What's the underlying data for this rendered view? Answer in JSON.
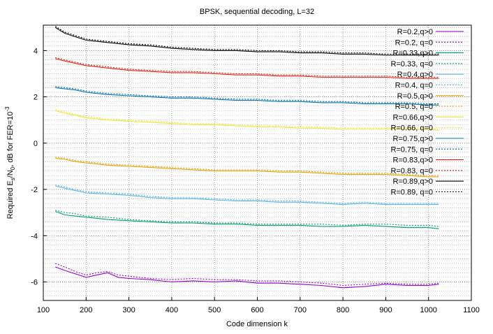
{
  "chart_data": {
    "type": "line",
    "title": "BPSK, sequential decoding, L=32",
    "xlabel": "Code dimension k",
    "ylabel_parts": {
      "a": "Required E",
      "b": "s",
      "c": "/N",
      "d": "0",
      "e": ", dB for FER=10",
      "f": "-3"
    },
    "xlim": [
      100,
      1100
    ],
    "ylim": [
      -6.8,
      5.1
    ],
    "xticks": [
      100,
      200,
      300,
      400,
      500,
      600,
      700,
      800,
      900,
      1000,
      1100
    ],
    "yticks": [
      -6,
      -4,
      -2,
      0,
      2,
      4
    ],
    "grid": true,
    "legend_position": "top-right",
    "series": [
      {
        "name": "R=0.2,q>0",
        "color": "#9400d3",
        "dash": "solid",
        "x": [
          128,
          150,
          175,
          200,
          225,
          250,
          275,
          300,
          350,
          400,
          450,
          500,
          550,
          600,
          650,
          700,
          750,
          800,
          850,
          900,
          950,
          1000,
          1024
        ],
        "y": [
          -5.35,
          -5.5,
          -5.65,
          -5.8,
          -5.7,
          -5.6,
          -5.8,
          -5.85,
          -5.9,
          -6.0,
          -5.95,
          -6.0,
          -5.95,
          -6.05,
          -6.05,
          -6.1,
          -6.15,
          -6.25,
          -6.2,
          -6.1,
          -6.15,
          -6.15,
          -6.1
        ]
      },
      {
        "name": "R=0.2, q=0",
        "color": "#9400d3",
        "dash": "dotted",
        "x": [
          128,
          150,
          175,
          200,
          225,
          250,
          275,
          300,
          350,
          400,
          450,
          500,
          550,
          600,
          650,
          700,
          750,
          800,
          850,
          900,
          950,
          1000,
          1024
        ],
        "y": [
          -5.2,
          -5.35,
          -5.55,
          -5.7,
          -5.6,
          -5.55,
          -5.7,
          -5.75,
          -5.85,
          -5.9,
          -5.85,
          -5.9,
          -5.9,
          -5.95,
          -5.95,
          -6.0,
          -6.05,
          -6.15,
          -6.1,
          -6.05,
          -6.1,
          -6.1,
          -6.05
        ]
      },
      {
        "name": "R=0.33,q>0",
        "color": "#009e73",
        "dash": "solid",
        "x": [
          128,
          150,
          175,
          200,
          250,
          300,
          350,
          400,
          450,
          500,
          550,
          600,
          650,
          700,
          750,
          800,
          850,
          900,
          950,
          1000,
          1024
        ],
        "y": [
          -2.95,
          -3.1,
          -3.15,
          -3.2,
          -3.3,
          -3.35,
          -3.4,
          -3.45,
          -3.45,
          -3.5,
          -3.5,
          -3.55,
          -3.55,
          -3.55,
          -3.6,
          -3.6,
          -3.55,
          -3.6,
          -3.65,
          -3.65,
          -3.7
        ]
      },
      {
        "name": "R=0.33, q=0",
        "color": "#009e73",
        "dash": "dotted",
        "x": [
          128,
          150,
          175,
          200,
          250,
          300,
          350,
          400,
          450,
          500,
          550,
          600,
          650,
          700,
          750,
          800,
          850,
          900,
          950,
          1000,
          1024
        ],
        "y": [
          -2.9,
          -3.0,
          -3.05,
          -3.15,
          -3.2,
          -3.3,
          -3.35,
          -3.4,
          -3.4,
          -3.45,
          -3.45,
          -3.5,
          -3.5,
          -3.5,
          -3.5,
          -3.55,
          -3.5,
          -3.5,
          -3.55,
          -3.55,
          -3.6
        ]
      },
      {
        "name": "R=0.4,q>0",
        "color": "#56b4e9",
        "dash": "solid",
        "x": [
          128,
          150,
          175,
          200,
          250,
          300,
          350,
          400,
          450,
          500,
          550,
          600,
          650,
          700,
          750,
          800,
          850,
          900,
          950,
          1000,
          1024
        ],
        "y": [
          -1.85,
          -1.95,
          -2.05,
          -2.15,
          -2.2,
          -2.25,
          -2.35,
          -2.4,
          -2.4,
          -2.45,
          -2.5,
          -2.5,
          -2.55,
          -2.55,
          -2.6,
          -2.65,
          -2.6,
          -2.65,
          -2.65,
          -2.65,
          -2.65
        ]
      },
      {
        "name": "R=0.4, q=0",
        "color": "#56b4e9",
        "dash": "dotted",
        "x": [
          128,
          150,
          175,
          200,
          250,
          300,
          350,
          400,
          450,
          500,
          550,
          600,
          650,
          700,
          750,
          800,
          850,
          900,
          950,
          1000,
          1024
        ],
        "y": [
          -1.8,
          -1.9,
          -2.0,
          -2.1,
          -2.15,
          -2.2,
          -2.3,
          -2.35,
          -2.35,
          -2.4,
          -2.45,
          -2.45,
          -2.5,
          -2.5,
          -2.55,
          -2.6,
          -2.55,
          -2.6,
          -2.6,
          -2.6,
          -2.6
        ]
      },
      {
        "name": "R=0.5,q>0",
        "color": "#e69f00",
        "dash": "solid",
        "x": [
          128,
          150,
          175,
          200,
          250,
          300,
          350,
          400,
          450,
          500,
          550,
          600,
          650,
          700,
          750,
          800,
          850,
          900,
          950,
          1000,
          1024
        ],
        "y": [
          -0.65,
          -0.7,
          -0.8,
          -0.85,
          -0.95,
          -1.0,
          -1.05,
          -1.1,
          -1.15,
          -1.2,
          -1.2,
          -1.2,
          -1.25,
          -1.25,
          -1.3,
          -1.35,
          -1.35,
          -1.35,
          -1.4,
          -1.45,
          -1.45
        ]
      },
      {
        "name": "R=0.5, q=0",
        "color": "#e69f00",
        "dash": "dotted",
        "x": [
          128,
          150,
          175,
          200,
          250,
          300,
          350,
          400,
          450,
          500,
          550,
          600,
          650,
          700,
          750,
          800,
          850,
          900,
          950,
          1000,
          1024
        ],
        "y": [
          -0.6,
          -0.65,
          -0.75,
          -0.8,
          -0.9,
          -0.95,
          -1.0,
          -1.05,
          -1.1,
          -1.15,
          -1.15,
          -1.15,
          -1.2,
          -1.2,
          -1.25,
          -1.3,
          -1.3,
          -1.3,
          -1.35,
          -1.4,
          -1.4
        ]
      },
      {
        "name": "R=0.66,q>0",
        "color": "#f0e442",
        "dash": "solid",
        "x": [
          128,
          150,
          175,
          200,
          250,
          300,
          350,
          400,
          450,
          500,
          550,
          600,
          650,
          700,
          750,
          800,
          850,
          900,
          950,
          1000,
          1024
        ],
        "y": [
          1.4,
          1.3,
          1.2,
          1.1,
          1.0,
          0.95,
          0.9,
          0.85,
          0.8,
          0.8,
          0.75,
          0.7,
          0.7,
          0.65,
          0.65,
          0.6,
          0.6,
          0.6,
          0.6,
          0.6,
          0.55
        ]
      },
      {
        "name": "R=0.66, q=0",
        "color": "#f0e442",
        "dash": "dotted",
        "x": [
          128,
          150,
          175,
          200,
          250,
          300,
          350,
          400,
          450,
          500,
          550,
          600,
          650,
          700,
          750,
          800,
          850,
          900,
          950,
          1000,
          1024
        ],
        "y": [
          1.45,
          1.35,
          1.25,
          1.15,
          1.05,
          1.0,
          0.95,
          0.9,
          0.85,
          0.85,
          0.8,
          0.75,
          0.75,
          0.7,
          0.7,
          0.65,
          0.65,
          0.65,
          0.65,
          0.65,
          0.6
        ]
      },
      {
        "name": "R=0.75,q>0",
        "color": "#0072b2",
        "dash": "solid",
        "x": [
          128,
          150,
          175,
          200,
          250,
          300,
          350,
          400,
          450,
          500,
          550,
          600,
          650,
          700,
          750,
          800,
          850,
          900,
          950,
          1000,
          1024
        ],
        "y": [
          2.4,
          2.35,
          2.3,
          2.2,
          2.1,
          2.05,
          2.0,
          1.95,
          1.95,
          1.9,
          1.85,
          1.85,
          1.8,
          1.8,
          1.75,
          1.75,
          1.7,
          1.7,
          1.7,
          1.65,
          1.65
        ]
      },
      {
        "name": "R=0.75, q=0",
        "color": "#0072b2",
        "dash": "dotted",
        "x": [
          128,
          150,
          175,
          200,
          250,
          300,
          350,
          400,
          450,
          500,
          550,
          600,
          650,
          700,
          750,
          800,
          850,
          900,
          950,
          1000,
          1024
        ],
        "y": [
          2.45,
          2.4,
          2.35,
          2.25,
          2.15,
          2.1,
          2.05,
          2.0,
          2.0,
          1.95,
          1.9,
          1.9,
          1.85,
          1.85,
          1.8,
          1.8,
          1.75,
          1.75,
          1.75,
          1.7,
          1.7
        ]
      },
      {
        "name": "R=0.83,q>0",
        "color": "#e51e10",
        "dash": "solid",
        "x": [
          128,
          150,
          175,
          200,
          250,
          300,
          350,
          400,
          450,
          500,
          550,
          600,
          650,
          700,
          750,
          800,
          850,
          900,
          950,
          1000,
          1024
        ],
        "y": [
          3.65,
          3.55,
          3.45,
          3.35,
          3.25,
          3.15,
          3.1,
          3.05,
          3.05,
          3.0,
          2.95,
          2.95,
          2.9,
          2.9,
          2.85,
          2.85,
          2.85,
          2.85,
          2.8,
          2.8,
          2.8
        ]
      },
      {
        "name": "R=0.83, q=0",
        "color": "#e51e10",
        "dash": "dotted",
        "x": [
          128,
          150,
          175,
          200,
          250,
          300,
          350,
          400,
          450,
          500,
          550,
          600,
          650,
          700,
          750,
          800,
          850,
          900,
          950,
          1000,
          1024
        ],
        "y": [
          3.7,
          3.6,
          3.5,
          3.4,
          3.3,
          3.2,
          3.15,
          3.1,
          3.1,
          3.05,
          3.0,
          3.0,
          2.95,
          2.95,
          2.9,
          2.9,
          2.9,
          2.9,
          2.85,
          2.85,
          2.85
        ]
      },
      {
        "name": "R=0.89,q>0",
        "color": "#000000",
        "dash": "solid",
        "x": [
          128,
          150,
          175,
          200,
          250,
          300,
          350,
          400,
          450,
          500,
          550,
          600,
          650,
          700,
          750,
          800,
          850,
          900,
          950,
          1000,
          1024
        ],
        "y": [
          5.0,
          4.75,
          4.6,
          4.45,
          4.35,
          4.25,
          4.2,
          4.1,
          4.05,
          4.0,
          4.0,
          3.95,
          3.95,
          3.9,
          3.9,
          3.85,
          3.85,
          3.8,
          3.8,
          3.8,
          3.8
        ]
      },
      {
        "name": "R=0.89, q=0",
        "color": "#000000",
        "dash": "dotted",
        "x": [
          128,
          150,
          175,
          200,
          250,
          300,
          350,
          400,
          450,
          500,
          550,
          600,
          650,
          700,
          750,
          800,
          850,
          900,
          950,
          1000,
          1024
        ],
        "y": [
          5.05,
          4.8,
          4.65,
          4.5,
          4.4,
          4.3,
          4.25,
          4.15,
          4.1,
          4.05,
          4.05,
          4.0,
          4.0,
          3.95,
          3.95,
          3.9,
          3.9,
          3.85,
          3.85,
          3.85,
          3.85
        ]
      }
    ]
  }
}
